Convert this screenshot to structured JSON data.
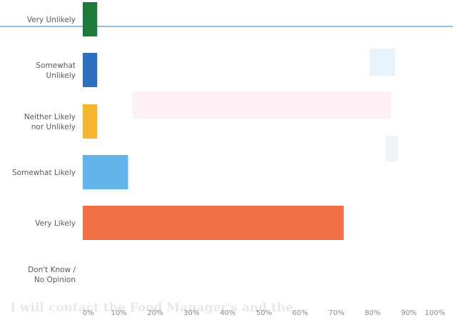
{
  "chart_data": {
    "type": "bar",
    "orientation": "horizontal",
    "categories": [
      "Very Unlikely",
      "Somewhat Unlikely",
      "Neither Likely nor Unlikely",
      "Somewhat Likely",
      "Very Likely",
      "Don't Know / No Opinion"
    ],
    "category_lines": [
      [
        "Very Unlikely"
      ],
      [
        "Somewhat",
        "Unlikely"
      ],
      [
        "Neither Likely",
        "nor Unlikely"
      ],
      [
        "Somewhat Likely"
      ],
      [
        "Very Likely"
      ],
      [
        "Don't Know /",
        "No Opinion"
      ]
    ],
    "values": [
      4,
      4,
      4,
      12.5,
      72,
      0
    ],
    "colors": [
      "#1e7a3a",
      "#2f6fbf",
      "#f2b631",
      "#62b3ea",
      "#f07148",
      "#cccccc"
    ],
    "xlim": [
      0,
      100
    ],
    "x_ticks": [
      0,
      10,
      20,
      30,
      40,
      50,
      60,
      70,
      80,
      90,
      100
    ],
    "x_tick_labels": [
      "0%",
      "10%",
      "20%",
      "30%",
      "40%",
      "50%",
      "60%",
      "70%",
      "80%",
      "90%",
      "100%"
    ],
    "grid": false
  }
}
